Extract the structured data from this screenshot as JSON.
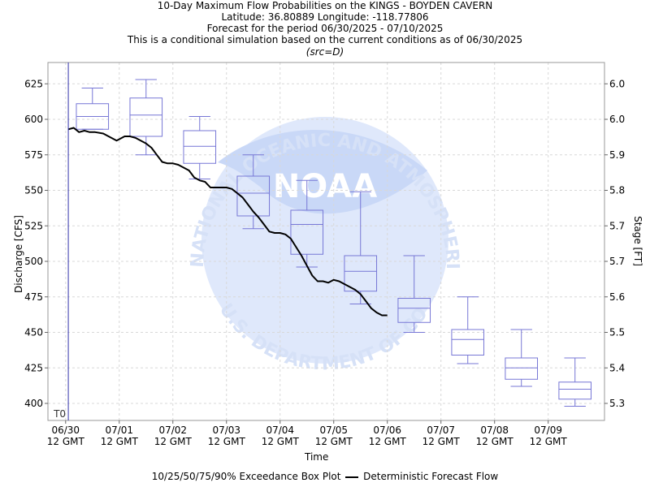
{
  "titles": {
    "line1": "10-Day Maximum Flow Probabilities on the KINGS - BOYDEN CAVERN",
    "line2": "Latitude: 36.80889 Longitude: -118.77806",
    "line3": "Forecast for the period 06/30/2025 - 07/10/2025",
    "line4": "This is a conditional simulation based on the current conditions as of 06/30/2025",
    "line5": "(src=D)"
  },
  "legend": {
    "box_label": "10/25/50/75/90% Exceedance Box Plot",
    "line_label": "Deterministic Forecast Flow"
  },
  "watermark": {
    "agency": "NOAA",
    "ring_top": "NATIONAL OCEANIC AND ATMOSPHERIC ADMINISTRATION",
    "ring_bottom": "U.S. DEPARTMENT OF COMMERCE"
  },
  "colors": {
    "box": "#7777d6",
    "forecast_line": "#000000",
    "t0_line": "#3333aa",
    "grid": "#d8d8d8",
    "watermark": "#dfe8fb"
  },
  "chart_data": {
    "type": "box",
    "xlabel": "Time",
    "ylabel_left": "Discharge [CFS]",
    "ylabel_right": "Stage [FT]",
    "t0_label": "T0",
    "x_range_days": [
      -0.33,
      10.05
    ],
    "ylim": [
      388,
      640
    ],
    "grid": true,
    "x_ticks": [
      {
        "day": 0,
        "date": "06/30",
        "time": "12 GMT"
      },
      {
        "day": 1,
        "date": "07/01",
        "time": "12 GMT"
      },
      {
        "day": 2,
        "date": "07/02",
        "time": "12 GMT"
      },
      {
        "day": 3,
        "date": "07/03",
        "time": "12 GMT"
      },
      {
        "day": 4,
        "date": "07/04",
        "time": "12 GMT"
      },
      {
        "day": 5,
        "date": "07/05",
        "time": "12 GMT"
      },
      {
        "day": 6,
        "date": "07/06",
        "time": "12 GMT"
      },
      {
        "day": 7,
        "date": "07/07",
        "time": "12 GMT"
      },
      {
        "day": 8,
        "date": "07/08",
        "time": "12 GMT"
      },
      {
        "day": 9,
        "date": "07/09",
        "time": "12 GMT"
      }
    ],
    "y_ticks_left": [
      400,
      425,
      450,
      475,
      500,
      525,
      550,
      575,
      600,
      625
    ],
    "y_ticks_right": [
      {
        "cfs": 625,
        "label": "6.0"
      },
      {
        "cfs": 600,
        "label": "6.0"
      },
      {
        "cfs": 575,
        "label": "5.9"
      },
      {
        "cfs": 550,
        "label": "5.8"
      },
      {
        "cfs": 525,
        "label": "5.7"
      },
      {
        "cfs": 500,
        "label": "5.7"
      },
      {
        "cfs": 475,
        "label": "5.6"
      },
      {
        "cfs": 450,
        "label": "5.5"
      },
      {
        "cfs": 425,
        "label": "5.4"
      },
      {
        "cfs": 400,
        "label": "5.3"
      }
    ],
    "boxes": [
      {
        "center_day": 0.5,
        "p10": 593,
        "p25": 593,
        "p50": 602,
        "p75": 611,
        "p90": 622
      },
      {
        "center_day": 1.5,
        "p10": 575,
        "p25": 588,
        "p50": 603,
        "p75": 615,
        "p90": 628
      },
      {
        "center_day": 2.5,
        "p10": 558,
        "p25": 569,
        "p50": 581,
        "p75": 592,
        "p90": 602
      },
      {
        "center_day": 3.5,
        "p10": 523,
        "p25": 532,
        "p50": 548,
        "p75": 560,
        "p90": 575
      },
      {
        "center_day": 4.5,
        "p10": 496,
        "p25": 505,
        "p50": 526,
        "p75": 536,
        "p90": 557
      },
      {
        "center_day": 5.5,
        "p10": 470,
        "p25": 479,
        "p50": 493,
        "p75": 504,
        "p90": 549
      },
      {
        "center_day": 6.5,
        "p10": 450,
        "p25": 457,
        "p50": 467,
        "p75": 474,
        "p90": 504
      },
      {
        "center_day": 7.5,
        "p10": 428,
        "p25": 434,
        "p50": 445,
        "p75": 452,
        "p90": 475
      },
      {
        "center_day": 8.5,
        "p10": 412,
        "p25": 417,
        "p50": 425,
        "p75": 432,
        "p90": 452
      },
      {
        "center_day": 9.5,
        "p10": 398,
        "p25": 403,
        "p50": 410,
        "p75": 415,
        "p90": 432
      }
    ],
    "forecast": {
      "name": "Deterministic Forecast Flow",
      "x": [
        0.05,
        0.15,
        0.25,
        0.35,
        0.45,
        0.55,
        0.7,
        0.85,
        0.95,
        1.0,
        1.1,
        1.2,
        1.3,
        1.4,
        1.5,
        1.6,
        1.7,
        1.8,
        1.9,
        2.0,
        2.1,
        2.2,
        2.3,
        2.4,
        2.5,
        2.6,
        2.7,
        2.8,
        2.9,
        3.0,
        3.1,
        3.2,
        3.3,
        3.4,
        3.5,
        3.6,
        3.7,
        3.8,
        3.9,
        4.0,
        4.1,
        4.2,
        4.3,
        4.4,
        4.5,
        4.6,
        4.7,
        4.8,
        4.9,
        5.0,
        5.1,
        5.2,
        5.3,
        5.4,
        5.5,
        5.6,
        5.7,
        5.8,
        5.9,
        6.0
      ],
      "y": [
        593,
        594,
        591,
        592,
        591,
        591,
        590,
        587,
        585,
        586,
        588,
        588,
        587,
        585,
        583,
        580,
        575,
        570,
        569,
        569,
        568,
        566,
        564,
        559,
        557,
        556,
        552,
        552,
        552,
        552,
        551,
        548,
        545,
        540,
        535,
        531,
        526,
        521,
        520,
        520,
        519,
        516,
        510,
        504,
        497,
        490,
        486,
        486,
        485,
        487,
        486,
        484,
        482,
        480,
        477,
        472,
        467,
        464,
        462,
        462
      ]
    }
  }
}
